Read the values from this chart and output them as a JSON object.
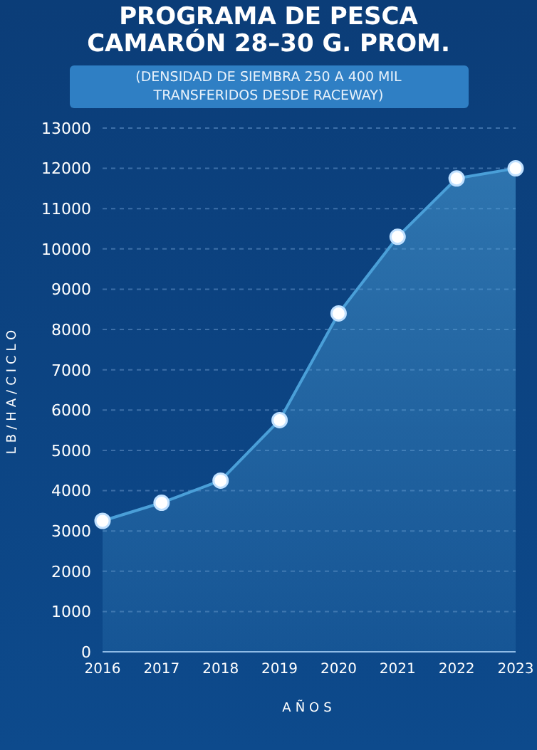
{
  "chart_data": {
    "type": "area",
    "title": "PROGRAMA DE PESCA\nCAMARÓN 28–30 G. PROM.",
    "subtitle": "(DENSIDAD DE SIEMBRA 250 A 400 MIL\nTRANSFERIDOS DESDE RACEWAY)",
    "xlabel": "AÑOS",
    "ylabel": "LB/HA/CICLO",
    "categories": [
      "2016",
      "2017",
      "2018",
      "2019",
      "2020",
      "2021",
      "2022",
      "2023"
    ],
    "series": [
      {
        "color": "#4a9fd8",
        "values": [
          3250,
          3700,
          4250,
          5750,
          8400,
          10300,
          11750,
          12000
        ]
      }
    ],
    "ylim": [
      0,
      13000
    ],
    "yticks": [
      0,
      1000,
      2000,
      3000,
      4000,
      5000,
      6000,
      7000,
      8000,
      9000,
      10000,
      11000,
      12000,
      13000
    ],
    "grid": "y",
    "marker": "circle",
    "line_style": "solid"
  }
}
